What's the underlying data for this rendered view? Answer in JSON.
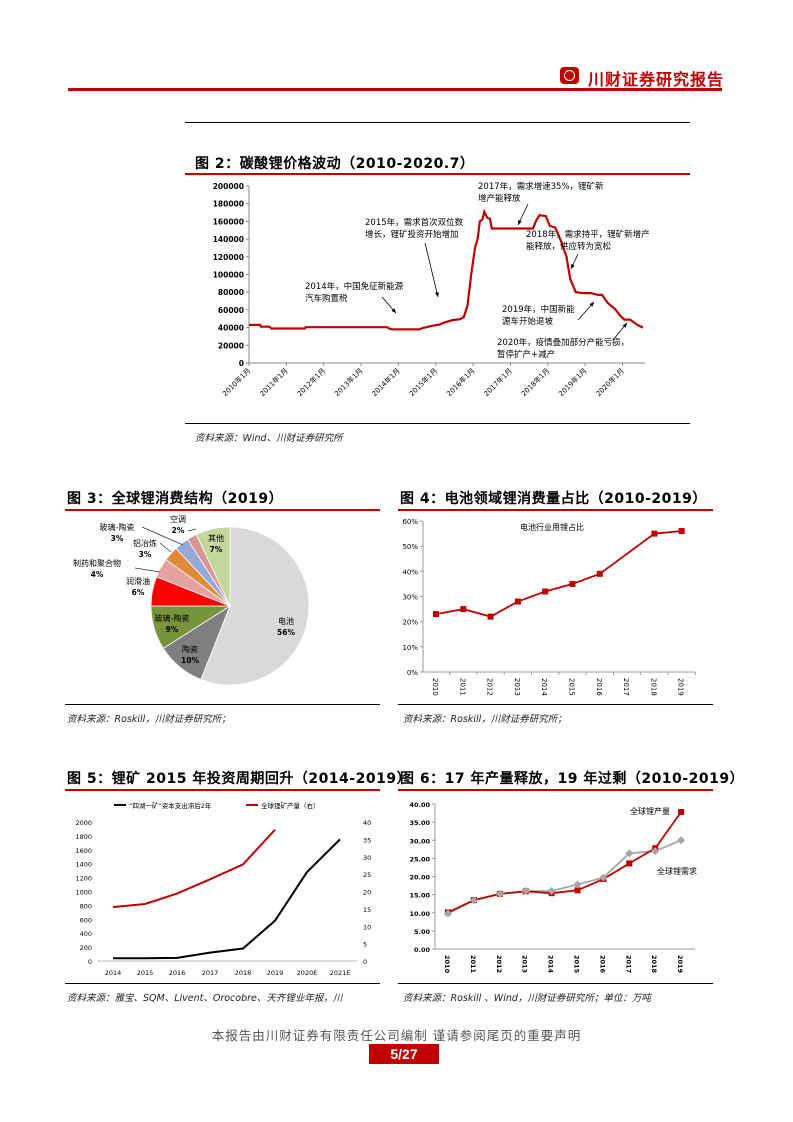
{
  "header": {
    "brand": "川财证券研究报告"
  },
  "footer": {
    "disclaimer": "本报告由川财证券有限责任公司编制  谨请参阅尾页的重要声明",
    "page": "5/27"
  },
  "colors": {
    "accent": "#c00000",
    "series_red": "#c00000",
    "series_gray": "#a6a6a6",
    "series_black": "#000000"
  },
  "chart_data": [
    {
      "type": "line",
      "title": "图 2：碳酸锂价格波动（2010-2020.7）",
      "source": "资料来源：Wind、川财证券研究所",
      "ylim": [
        0,
        200000
      ],
      "yticks": [
        "0",
        "20000",
        "40000",
        "60000",
        "80000",
        "100000",
        "120000",
        "140000",
        "160000",
        "180000",
        "200000"
      ],
      "xticks": [
        "2010年1月",
        "2011年1月",
        "2012年1月",
        "2013年1月",
        "2014年1月",
        "2015年1月",
        "2016年1月",
        "2017年1月",
        "2018年1月",
        "2019年1月",
        "2020年1月"
      ],
      "series": [
        {
          "name": "碳酸锂价格",
          "points": [
            [
              2010,
              43000
            ],
            [
              2010.3,
              43000
            ],
            [
              2010.32,
              41000
            ],
            [
              2010.55,
              41000
            ],
            [
              2010.6,
              39000
            ],
            [
              2011.5,
              39000
            ],
            [
              2011.52,
              40500
            ],
            [
              2013.7,
              40500
            ],
            [
              2013.75,
              39000
            ],
            [
              2013.85,
              38000
            ],
            [
              2014.55,
              38000
            ],
            [
              2014.65,
              39500
            ],
            [
              2014.9,
              42000
            ],
            [
              2015.1,
              43500
            ],
            [
              2015.25,
              46000
            ],
            [
              2015.45,
              48500
            ],
            [
              2015.65,
              49500
            ],
            [
              2015.75,
              52000
            ],
            [
              2015.85,
              65000
            ],
            [
              2015.95,
              100000
            ],
            [
              2016.05,
              130000
            ],
            [
              2016.12,
              140000
            ],
            [
              2016.18,
              160000
            ],
            [
              2016.25,
              162000
            ],
            [
              2016.3,
              171000
            ],
            [
              2016.38,
              164000
            ],
            [
              2016.45,
              163000
            ],
            [
              2016.5,
              152000
            ],
            [
              2017.6,
              152000
            ],
            [
              2017.7,
              162000
            ],
            [
              2017.78,
              167000
            ],
            [
              2017.95,
              166000
            ],
            [
              2018.05,
              155000
            ],
            [
              2018.2,
              153000
            ],
            [
              2018.35,
              138000
            ],
            [
              2018.5,
              120000
            ],
            [
              2018.6,
              95000
            ],
            [
              2018.75,
              80000
            ],
            [
              2018.95,
              79000
            ],
            [
              2019.15,
              79000
            ],
            [
              2019.35,
              77000
            ],
            [
              2019.45,
              77000
            ],
            [
              2019.6,
              68000
            ],
            [
              2019.8,
              61000
            ],
            [
              2019.95,
              53000
            ],
            [
              2020.05,
              49000
            ],
            [
              2020.2,
              49000
            ],
            [
              2020.4,
              43000
            ],
            [
              2020.55,
              40000
            ]
          ]
        }
      ],
      "annotations": [
        {
          "lines": [
            "2014年，中国免征新能源",
            "汽车购置税"
          ]
        },
        {
          "lines": [
            "2015年，需求首次双位数",
            "增长，锂矿投资开始增加"
          ]
        },
        {
          "lines": [
            "2017年，需求增速35%，锂矿新",
            "增产能释放"
          ]
        },
        {
          "lines": [
            "2018年，需求持平，锂矿新增产",
            "能释放，供应转为宽松"
          ]
        },
        {
          "lines": [
            "2019年，中国新能",
            "源车开始退坡"
          ]
        },
        {
          "lines": [
            "2020年，疫情叠加部分产能亏损，",
            "暂停扩产+减产"
          ]
        }
      ]
    },
    {
      "type": "pie",
      "title": "图 3：全球锂消费结构（2019）",
      "source": "资料来源：Roskill，川财证券研究所；",
      "slices": [
        {
          "label": "电池",
          "value": 56,
          "text": "56%",
          "color": "#d9d9d9"
        },
        {
          "label": "陶瓷",
          "value": 10,
          "text": "10%",
          "color": "#7f7f7f"
        },
        {
          "label": "玻璃-陶瓷",
          "value": 9,
          "text": "9%",
          "color": "#77933c"
        },
        {
          "label": "润滑油",
          "value": 6,
          "text": "6%",
          "color": "#ff0000"
        },
        {
          "label": "制药和聚合物",
          "value": 4,
          "text": "4%",
          "color": "#e6a0a0"
        },
        {
          "label": "铝冶炼",
          "value": 3,
          "text": "3%",
          "color": "#e08a3c"
        },
        {
          "label": "玻璃-陶瓷",
          "value": 3,
          "text": "3%",
          "color": "#95a9d6"
        },
        {
          "label": "空调",
          "value": 2,
          "text": "2%",
          "color": "#d99594"
        },
        {
          "label": "其他",
          "value": 7,
          "text": "7%",
          "color": "#c3d69b"
        }
      ]
    },
    {
      "type": "line",
      "title": "图 4：电池领域锂消费量占比（2010-2019）",
      "source": "资料来源：Roskill，川财证券研究所；",
      "ylim": [
        0,
        60
      ],
      "yticks": [
        "0%",
        "10%",
        "20%",
        "30%",
        "40%",
        "50%",
        "60%"
      ],
      "categories": [
        "2010",
        "2011",
        "2012",
        "2013",
        "2014",
        "2015",
        "2016",
        "2017",
        "2018",
        "2019"
      ],
      "series": [
        {
          "name": "电池行业用锂占比",
          "values": [
            23,
            25,
            22,
            28,
            32,
            35,
            39,
            null,
            55,
            56
          ]
        }
      ]
    },
    {
      "type": "line",
      "title": "图 5：锂矿 2015 年投资周期回升（2014-2019）",
      "source": "资料来源：雅宝、SQM、Livent、Orocobre、天齐锂业年报，川",
      "ylim": [
        0,
        2000
      ],
      "y2lim": [
        0,
        40
      ],
      "yticks": [
        "0",
        "200",
        "400",
        "600",
        "800",
        "1000",
        "1200",
        "1400",
        "1600",
        "1800",
        "2000"
      ],
      "y2ticks": [
        "0",
        "5",
        "10",
        "15",
        "20",
        "25",
        "30",
        "35",
        "40"
      ],
      "categories": [
        "2014",
        "2015",
        "2016",
        "2017",
        "2018",
        "2019",
        "2020E",
        "2021E"
      ],
      "series": [
        {
          "name": "“四湖一矿”资本支出滞后2年",
          "axis": "left",
          "values": [
            40,
            40,
            45,
            120,
            180,
            580,
            1280,
            1750
          ]
        },
        {
          "name": "全球锂矿产量（右）",
          "axis": "right",
          "values": [
            15.5,
            16.4,
            19.4,
            23.5,
            27.8,
            37.8,
            null,
            null
          ]
        }
      ]
    },
    {
      "type": "line",
      "title": "图 6：17 年产量释放，19 年过剩（2010-2019）",
      "source": "资料来源：Roskill 、Wind，川财证券研究所；单位：万吨",
      "ylim": [
        0,
        40
      ],
      "yticks": [
        "0.00",
        "5.00",
        "10.00",
        "15.00",
        "20.00",
        "25.00",
        "30.00",
        "35.00",
        "40.00"
      ],
      "categories": [
        "2010",
        "2011",
        "2012",
        "2013",
        "2014",
        "2015",
        "2016",
        "2017",
        "2018",
        "2019"
      ],
      "series": [
        {
          "name": "全球锂产量",
          "values": [
            10.1,
            13.5,
            15.2,
            15.9,
            15.4,
            16.2,
            19.3,
            23.6,
            27.8,
            37.8
          ]
        },
        {
          "name": "全球锂需求",
          "values": [
            9.8,
            13.4,
            15.2,
            16.0,
            16.0,
            17.8,
            19.7,
            26.4,
            27.0,
            30.0
          ]
        }
      ]
    }
  ]
}
